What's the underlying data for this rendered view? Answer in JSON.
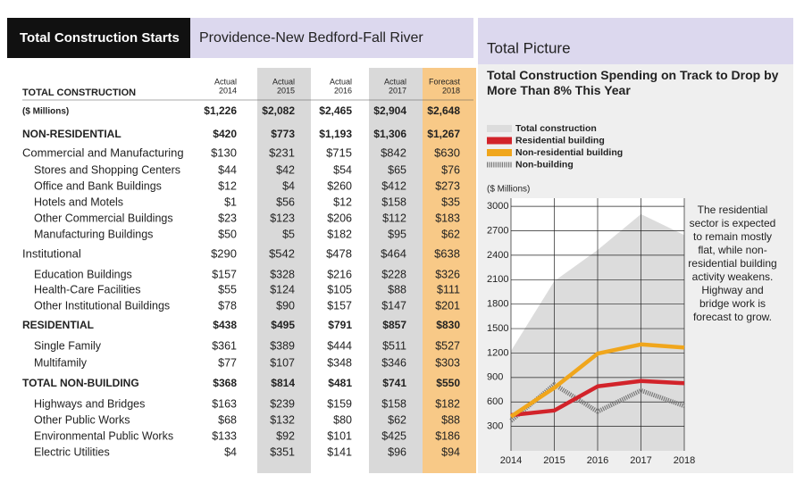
{
  "header": {
    "title": "Total Construction Starts",
    "region": "Providence-New Bedford-Fall River"
  },
  "table": {
    "heading": "TOTAL CONSTRUCTION",
    "columns": [
      {
        "label": "Actual",
        "year": "2014"
      },
      {
        "label": "Actual",
        "year": "2015",
        "shade": "#d9d9d9"
      },
      {
        "label": "Actual",
        "year": "2016"
      },
      {
        "label": "Actual",
        "year": "2017",
        "shade": "#d9d9d9"
      },
      {
        "label": "Forecast",
        "year": "2018",
        "shade": "#f8c987"
      }
    ],
    "rows": [
      {
        "label": "($ Millions)",
        "style": "total",
        "values": [
          "$1,226",
          "$2,082",
          "$2,465",
          "$2,904",
          "$2,648"
        ]
      },
      {
        "label": "NON-RESIDENTIAL",
        "style": "section",
        "values": [
          "$420",
          "$773",
          "$1,193",
          "$1,306",
          "$1,267"
        ]
      },
      {
        "label": "Commercial and Manufacturing",
        "style": "group",
        "values": [
          "$130",
          "$231",
          "$715",
          "$842",
          "$630"
        ]
      },
      {
        "label": "Stores and Shopping Centers",
        "style": "item",
        "values": [
          "$44",
          "$42",
          "$54",
          "$65",
          "$76"
        ]
      },
      {
        "label": "Office and Bank Buildings",
        "style": "item",
        "values": [
          "$12",
          "$4",
          "$260",
          "$412",
          "$273"
        ]
      },
      {
        "label": "Hotels and Motels",
        "style": "item",
        "values": [
          "$1",
          "$56",
          "$12",
          "$158",
          "$35"
        ]
      },
      {
        "label": "Other Commercial Buildings",
        "style": "item",
        "values": [
          "$23",
          "$123",
          "$206",
          "$112",
          "$183"
        ]
      },
      {
        "label": "Manufacturing Buildings",
        "style": "item",
        "values": [
          "$50",
          "$5",
          "$182",
          "$95",
          "$62"
        ]
      },
      {
        "label": "Institutional",
        "style": "group",
        "values": [
          "$290",
          "$542",
          "$478",
          "$464",
          "$638"
        ]
      },
      {
        "label": "Education Buildings",
        "style": "item",
        "values": [
          "$157",
          "$328",
          "$216",
          "$228",
          "$326"
        ]
      },
      {
        "label": "Health-Care Facilities",
        "style": "item",
        "values": [
          "$55",
          "$124",
          "$105",
          "$88",
          "$111"
        ]
      },
      {
        "label": "Other Institutional Buildings",
        "style": "item",
        "values": [
          "$78",
          "$90",
          "$157",
          "$147",
          "$201"
        ]
      },
      {
        "label": "RESIDENTIAL",
        "style": "section",
        "values": [
          "$438",
          "$495",
          "$791",
          "$857",
          "$830"
        ]
      },
      {
        "label": "Single Family",
        "style": "item",
        "values": [
          "$361",
          "$389",
          "$444",
          "$511",
          "$527"
        ]
      },
      {
        "label": "Multifamily",
        "style": "item",
        "values": [
          "$77",
          "$107",
          "$348",
          "$346",
          "$303"
        ]
      },
      {
        "label": "TOTAL NON-BUILDING",
        "style": "section",
        "values": [
          "$368",
          "$814",
          "$481",
          "$741",
          "$550"
        ]
      },
      {
        "label": "Highways and Bridges",
        "style": "item",
        "values": [
          "$163",
          "$239",
          "$159",
          "$158",
          "$182"
        ]
      },
      {
        "label": "Other Public Works",
        "style": "item",
        "values": [
          "$68",
          "$132",
          "$80",
          "$62",
          "$88"
        ]
      },
      {
        "label": "Environmental Public Works",
        "style": "item",
        "values": [
          "$133",
          "$92",
          "$101",
          "$425",
          "$186"
        ]
      },
      {
        "label": "Electric Utilities",
        "style": "item",
        "values": [
          "$4",
          "$351",
          "$141",
          "$96",
          "$94"
        ]
      }
    ]
  },
  "chart_data": {
    "type": "line",
    "panel_title": "Total Picture",
    "title": "Total Construction Spending on Track to Drop by More Than 8% This Year",
    "y_label": "($ Millions)",
    "annotation": "The residential sector is expected to remain mostly flat, while non-residential building activity weakens. Highway and bridge work is forecast to grow.",
    "x": [
      2014,
      2015,
      2016,
      2017,
      2018
    ],
    "xlim": [
      2014,
      2018
    ],
    "xticks": [
      2014,
      2015,
      2016,
      2017,
      2018
    ],
    "ylim": [
      0,
      3100
    ],
    "yticks": [
      300,
      600,
      900,
      1200,
      1500,
      1800,
      2100,
      2400,
      2700,
      3000
    ],
    "grid": true,
    "legend": "top-left",
    "series": [
      {
        "name": "Total construction",
        "color": "#dcdcdc",
        "kind": "area",
        "values": [
          1226,
          2082,
          2465,
          2904,
          2648
        ]
      },
      {
        "name": "Residential building",
        "color": "#d2232a",
        "kind": "line",
        "values": [
          438,
          495,
          791,
          857,
          830
        ]
      },
      {
        "name": "Non-residential building",
        "color": "#f0a61c",
        "kind": "line",
        "values": [
          420,
          773,
          1193,
          1306,
          1267
        ]
      },
      {
        "name": "Non-building",
        "color": "#777777",
        "kind": "hatched",
        "values": [
          368,
          814,
          481,
          741,
          550
        ]
      }
    ]
  }
}
